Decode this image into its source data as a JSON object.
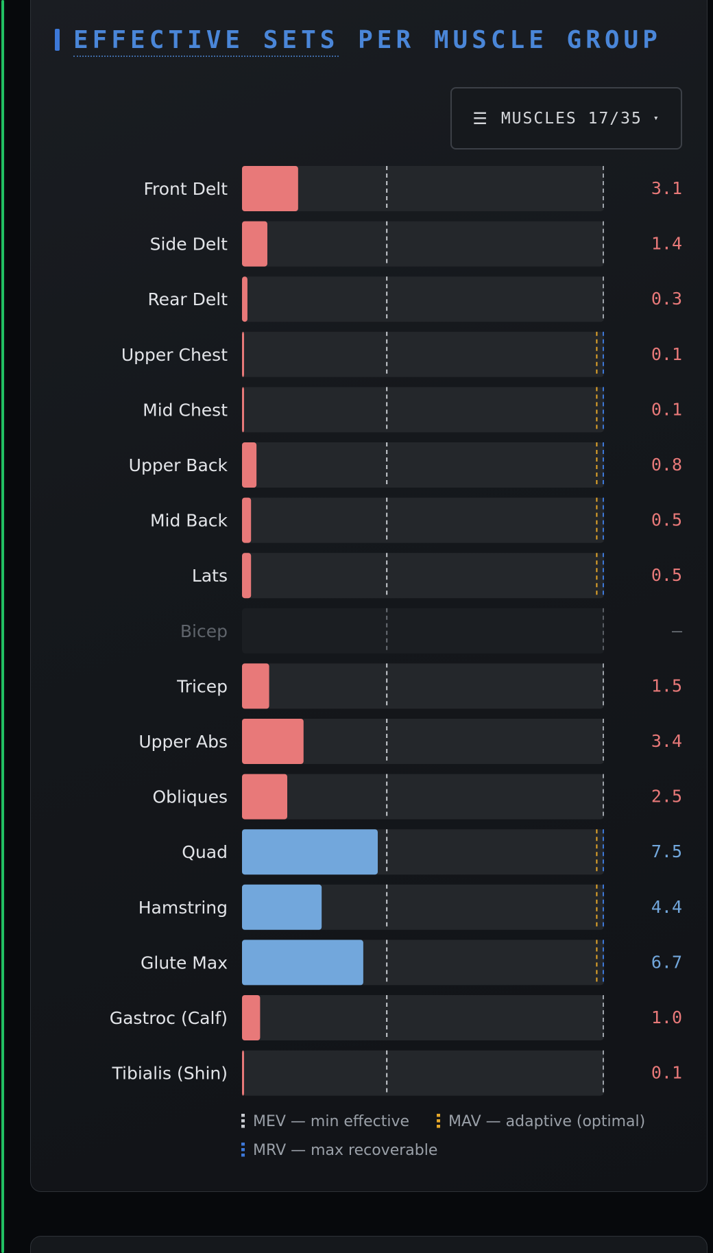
{
  "chart_data": {
    "type": "bar",
    "orientation": "horizontal",
    "title": "EFFECTIVE SETS PER MUSCLE GROUP",
    "title_parts": [
      "EFFECTIVE SETS",
      "PER MUSCLE GROUP"
    ],
    "xlim": [
      0,
      20
    ],
    "reference_lines": {
      "mev": 8,
      "mav": 19.6,
      "mrv": 20
    },
    "categories": [
      "Front Delt",
      "Side Delt",
      "Rear Delt",
      "Upper Chest",
      "Mid Chest",
      "Upper Back",
      "Mid Back",
      "Lats",
      "Bicep",
      "Tricep",
      "Upper Abs",
      "Obliques",
      "Quad",
      "Hamstring",
      "Glute Max",
      "Gastroc (Calf)",
      "Tibialis (Shin)"
    ],
    "values": [
      3.1,
      1.4,
      0.3,
      0.1,
      0.1,
      0.8,
      0.5,
      0.5,
      null,
      1.5,
      3.4,
      2.5,
      7.5,
      4.4,
      6.7,
      1.0,
      0.1
    ],
    "value_labels": [
      "3.1",
      "1.4",
      "0.3",
      "0.1",
      "0.1",
      "0.8",
      "0.5",
      "0.5",
      "—",
      "1.5",
      "3.4",
      "2.5",
      "7.5",
      "4.4",
      "6.7",
      "1.0",
      "0.1"
    ],
    "show_mav": [
      false,
      false,
      false,
      true,
      true,
      true,
      true,
      true,
      false,
      false,
      false,
      false,
      true,
      true,
      true,
      false,
      false
    ],
    "series_colors": {
      "low": "#e87979",
      "adequate": "#72a7dc"
    },
    "legend": [
      {
        "label": "MEV — min effective",
        "color": "#c9ccd1"
      },
      {
        "label": "MAV — adaptive (optimal)",
        "color": "#e5a72a"
      },
      {
        "label": "MRV — max recoverable",
        "color": "#3d78d8"
      }
    ],
    "legend_position": "bottom",
    "grid": false
  },
  "filter": {
    "icon": "menu-icon",
    "label": "MUSCLES 17/35",
    "caret": "▾"
  },
  "colors": {
    "title": "#4a86d8",
    "track": "#24272b",
    "track_empty": "#1b1e22",
    "mev_line": "#c9ccd1",
    "mav_line": "#e5a72a",
    "mrv_line": "#3d78d8",
    "label": "#e2e4e8",
    "label_muted": "#5f646b",
    "value_muted": "#6a6f76"
  }
}
